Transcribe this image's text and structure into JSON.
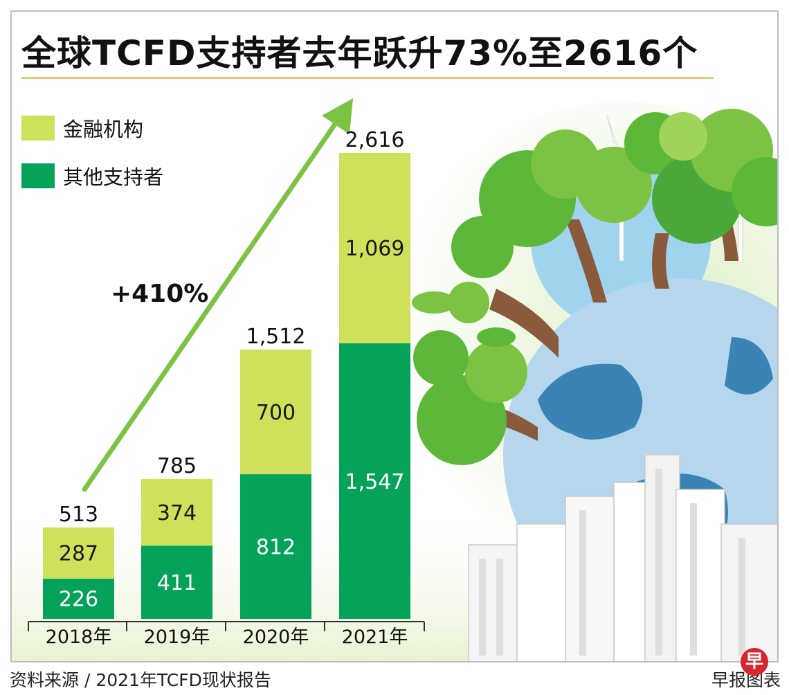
{
  "title": "全球TCFD支持者去年跃升73%至2616个",
  "legend": [
    {
      "label": "金融机构",
      "color": "#cfe05a"
    },
    {
      "label": "其他支持者",
      "color": "#05a35a"
    }
  ],
  "growth_label": "+410%",
  "colors": {
    "arrow": "#7cc243",
    "total_text": "#111111",
    "segment_text": "#1a1a1a",
    "axis": "#333333"
  },
  "chart_data": {
    "type": "bar",
    "stacked": true,
    "categories": [
      "2018年",
      "2019年",
      "2020年",
      "2021年"
    ],
    "series": [
      {
        "name": "其他支持者",
        "values": [
          226,
          411,
          812,
          1547
        ],
        "labels": [
          "226",
          "411",
          "812",
          "1,547"
        ]
      },
      {
        "name": "金融机构",
        "values": [
          287,
          374,
          700,
          1069
        ],
        "labels": [
          "287",
          "374",
          "700",
          "1,069"
        ]
      }
    ],
    "totals": [
      513,
      785,
      1512,
      2616
    ],
    "total_labels": [
      "513",
      "785",
      "1,512",
      "2,616"
    ],
    "title": "全球TCFD支持者去年跃升73%至2616个",
    "xlabel": "",
    "ylabel": "",
    "grid": false,
    "legend_position": "top-left"
  },
  "footer": {
    "source": "资料来源 / 2021年TCFD现状报告",
    "credit": "早报图表",
    "logo_text": "早"
  }
}
